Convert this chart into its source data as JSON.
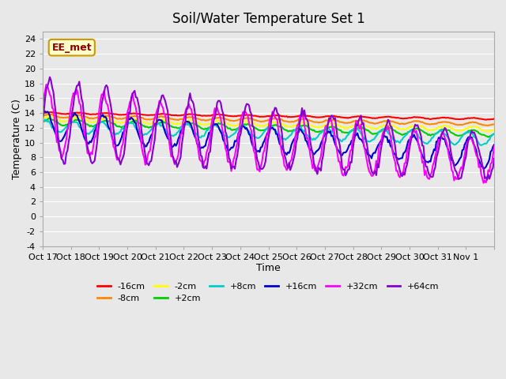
{
  "title": "Soil/Water Temperature Set 1",
  "xlabel": "Time",
  "ylabel": "Temperature (C)",
  "ylim": [
    -4,
    25
  ],
  "yticks": [
    -4,
    -2,
    0,
    2,
    4,
    6,
    8,
    10,
    12,
    14,
    16,
    18,
    20,
    22,
    24
  ],
  "background_color": "#e8e8e8",
  "plot_bg_color": "#e8e8e8",
  "watermark_text": "EE_met",
  "watermark_bg": "#ffffcc",
  "watermark_border": "#cc9900",
  "series_colors": {
    "-16cm": "#ff0000",
    "-8cm": "#ff8800",
    "-2cm": "#ffff00",
    "+2cm": "#00cc00",
    "+8cm": "#00cccc",
    "+16cm": "#0000cc",
    "+32cm": "#ff00ff",
    "+64cm": "#8800cc"
  },
  "x_tick_labels": [
    "Oct 17",
    "Oct 18",
    "Oct 19",
    "Oct 20",
    "Oct 21",
    "Oct 22",
    "Oct 23",
    "Oct 24",
    "Oct 25",
    "Oct 26",
    "Oct 27",
    "Oct 28",
    "Oct 29",
    "Oct 30",
    "Oct 31",
    "Nov 1",
    ""
  ]
}
